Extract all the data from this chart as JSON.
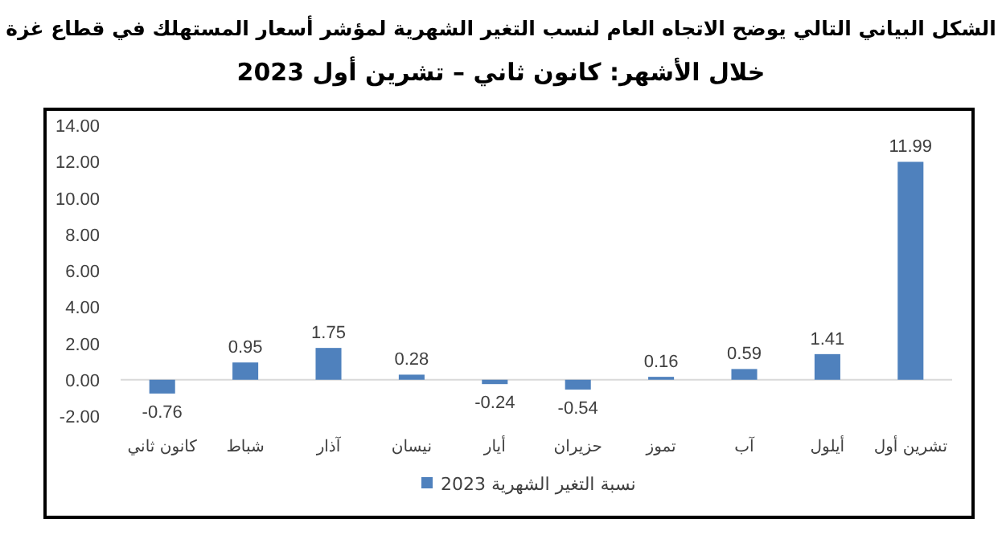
{
  "chart_data": {
    "type": "bar",
    "title": "الشكل البياني التالي يوضح الاتجاه العام لنسب التغير الشهرية لمؤشر أسعار المستهلك في قطاع غزة",
    "subtitle": "خلال الأشهر: كانون ثاني – تشرين أول 2023",
    "categories": [
      "كانون ثاني",
      "شباط",
      "آذار",
      "نيسان",
      "أيار",
      "حزيران",
      "تموز",
      "آب",
      "أيلول",
      "تشرين أول"
    ],
    "series": [
      {
        "name": "نسبة التغير الشهرية 2023",
        "color": "#4f81bd",
        "values": [
          -0.76,
          0.95,
          1.75,
          0.28,
          -0.24,
          -0.54,
          0.16,
          0.59,
          1.41,
          11.99
        ]
      }
    ],
    "ylim": [
      -2,
      14
    ],
    "yticks": [
      {
        "value": -2,
        "label": "-2.00"
      },
      {
        "value": 0,
        "label": "0.00"
      },
      {
        "value": 2,
        "label": "2.00"
      },
      {
        "value": 4,
        "label": "4.00"
      },
      {
        "value": 6,
        "label": "6.00"
      },
      {
        "value": 8,
        "label": "8.00"
      },
      {
        "value": 10,
        "label": "10.00"
      },
      {
        "value": 12,
        "label": "12.00"
      },
      {
        "value": 14,
        "label": "14.00"
      }
    ],
    "data_labels": true,
    "legend": "bottom"
  }
}
